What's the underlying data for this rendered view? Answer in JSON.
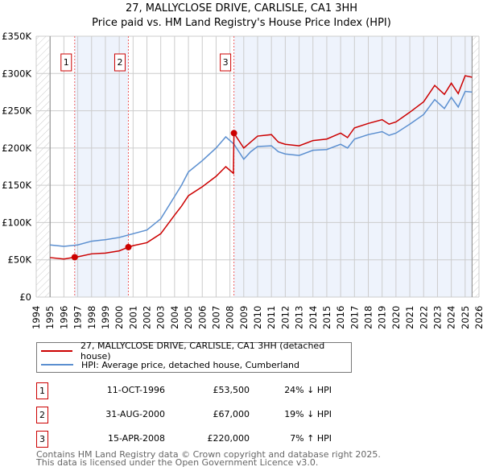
{
  "title": "27, MALLYCLOSE DRIVE, CARLISLE, CA1 3HH",
  "subtitle": "Price paid vs. HM Land Registry's House Price Index (HPI)",
  "chart_data": {
    "type": "line",
    "title": "27, MALLYCLOSE DRIVE, CARLISLE, CA1 3HH",
    "subtitle": "Price paid vs. HM Land Registry's House Price Index (HPI)",
    "xlim": [
      1994,
      2026
    ],
    "ylim": [
      0,
      350000
    ],
    "x_ticks": [
      "1994",
      "1995",
      "1996",
      "1997",
      "1998",
      "1999",
      "2000",
      "2001",
      "2002",
      "2003",
      "2004",
      "2005",
      "2006",
      "2007",
      "2008",
      "2009",
      "2010",
      "2011",
      "2012",
      "2013",
      "2014",
      "2015",
      "2016",
      "2017",
      "2018",
      "2019",
      "2020",
      "2021",
      "2022",
      "2023",
      "2024",
      "2025",
      "2026"
    ],
    "y_ticks": [
      {
        "v": 0,
        "label": "£0"
      },
      {
        "v": 50000,
        "label": "£50K"
      },
      {
        "v": 100000,
        "label": "£100K"
      },
      {
        "v": 150000,
        "label": "£150K"
      },
      {
        "v": 200000,
        "label": "£200K"
      },
      {
        "v": 250000,
        "label": "£250K"
      },
      {
        "v": 300000,
        "label": "£300K"
      },
      {
        "v": 350000,
        "label": "£350K"
      }
    ],
    "grid": true,
    "legend_position": "below",
    "series": [
      {
        "name": "27, MALLYCLOSE DRIVE, CARLISLE, CA1 3HH (detached house)",
        "color": "#cc0000",
        "x": [
          1995,
          1996,
          1996.78,
          1997,
          1998,
          1999,
          2000,
          2000.66,
          2001,
          2002,
          2003,
          2004,
          2004.5,
          2005,
          2006,
          2007,
          2007.7,
          2008.25,
          2008.29,
          2009,
          2009.5,
          2010,
          2011,
          2011.5,
          2012,
          2013,
          2014,
          2015,
          2016,
          2016.5,
          2017,
          2018,
          2019,
          2019.5,
          2020,
          2021,
          2022,
          2022.8,
          2023.5,
          2024,
          2024.5,
          2025,
          2025.5
        ],
        "y": [
          53,
          51,
          53.5,
          54,
          58,
          59,
          62,
          67,
          69,
          73,
          85,
          110,
          122,
          136,
          148,
          162,
          175,
          166,
          220,
          200,
          208,
          216,
          218,
          208,
          205,
          203,
          210,
          212,
          220,
          214,
          227,
          233,
          238,
          232,
          235,
          248,
          262,
          284,
          272,
          287,
          273,
          297,
          295
        ]
      },
      {
        "name": "HPI: Average price, detached house, Cumberland",
        "color": "#5b8fd0",
        "x": [
          1995,
          1996,
          1997,
          1998,
          1999,
          2000,
          2001,
          2002,
          2003,
          2004,
          2004.5,
          2005,
          2006,
          2007,
          2007.7,
          2008.3,
          2009,
          2009.5,
          2010,
          2011,
          2011.5,
          2012,
          2013,
          2014,
          2015,
          2016,
          2016.5,
          2017,
          2018,
          2019,
          2019.5,
          2020,
          2021,
          2022,
          2022.8,
          2023.5,
          2024,
          2024.5,
          2025,
          2025.5
        ],
        "y": [
          70,
          68,
          70,
          75,
          77,
          80,
          85,
          90,
          105,
          135,
          150,
          168,
          183,
          200,
          215,
          205,
          185,
          195,
          202,
          203,
          195,
          192,
          190,
          197,
          198,
          205,
          200,
          212,
          218,
          222,
          217,
          220,
          232,
          245,
          265,
          253,
          268,
          255,
          276,
          275
        ]
      }
    ],
    "y_units": "thousands GBP",
    "sales": [
      {
        "label": "1",
        "x": 1996.78,
        "y": 53.5
      },
      {
        "label": "2",
        "x": 2000.66,
        "y": 67
      },
      {
        "label": "3",
        "x": 2008.29,
        "y": 220
      }
    ]
  },
  "legend": {
    "items": [
      "27, MALLYCLOSE DRIVE, CARLISLE, CA1 3HH (detached house)",
      "HPI: Average price, detached house, Cumberland"
    ]
  },
  "transactions": [
    {
      "num": "1",
      "date": "11-OCT-1996",
      "price": "£53,500",
      "hpi": "24% ↓ HPI"
    },
    {
      "num": "2",
      "date": "31-AUG-2000",
      "price": "£67,000",
      "hpi": "19% ↓ HPI"
    },
    {
      "num": "3",
      "date": "15-APR-2008",
      "price": "£220,000",
      "hpi": "7% ↑ HPI"
    }
  ],
  "footer": {
    "line1": "Contains HM Land Registry data © Crown copyright and database right 2025.",
    "line2": "This data is licensed under the Open Government Licence v3.0."
  }
}
